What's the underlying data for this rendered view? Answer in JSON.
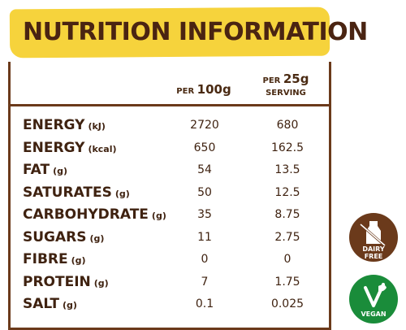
{
  "title": "NUTRITION INFORMATION",
  "columns": {
    "per100_prefix": "PER",
    "per100_amount": "100g",
    "per_serving_prefix": "PER",
    "per_serving_amount": "25g",
    "per_serving_suffix": "SERVING"
  },
  "rows": [
    {
      "label": "ENERGY",
      "unit": "(kJ)",
      "per100": "2720",
      "per_serving": "680"
    },
    {
      "label": "ENERGY",
      "unit": "(kcal)",
      "per100": "650",
      "per_serving": "162.5"
    },
    {
      "label": "FAT",
      "unit": "(g)",
      "per100": "54",
      "per_serving": "13.5"
    },
    {
      "label": "SATURATES",
      "unit": "(g)",
      "per100": "50",
      "per_serving": "12.5"
    },
    {
      "label": "CARBOHYDRATE",
      "unit": "(g)",
      "per100": "35",
      "per_serving": "8.75"
    },
    {
      "label": "SUGARS",
      "unit": "(g)",
      "per100": "11",
      "per_serving": "2.75"
    },
    {
      "label": "FIBRE",
      "unit": "(g)",
      "per100": "0",
      "per_serving": "0"
    },
    {
      "label": "PROTEIN",
      "unit": "(g)",
      "per100": "7",
      "per_serving": "1.75"
    },
    {
      "label": "SALT",
      "unit": "(g)",
      "per100": "0.1",
      "per_serving": "0.025"
    }
  ],
  "badges": {
    "dairy_free_line1": "DAIRY",
    "dairy_free_line2": "FREE",
    "dairy_free_icon": "milk-bottle-icon",
    "vegan": "VEGAN",
    "vegan_icon": "leaf-v-icon"
  },
  "colors": {
    "banner": "#f6d33c",
    "text": "#4a2a12",
    "rule": "#6b3a1b",
    "dairy_badge": "#6b3a1b",
    "vegan_badge": "#1a8c3a"
  }
}
